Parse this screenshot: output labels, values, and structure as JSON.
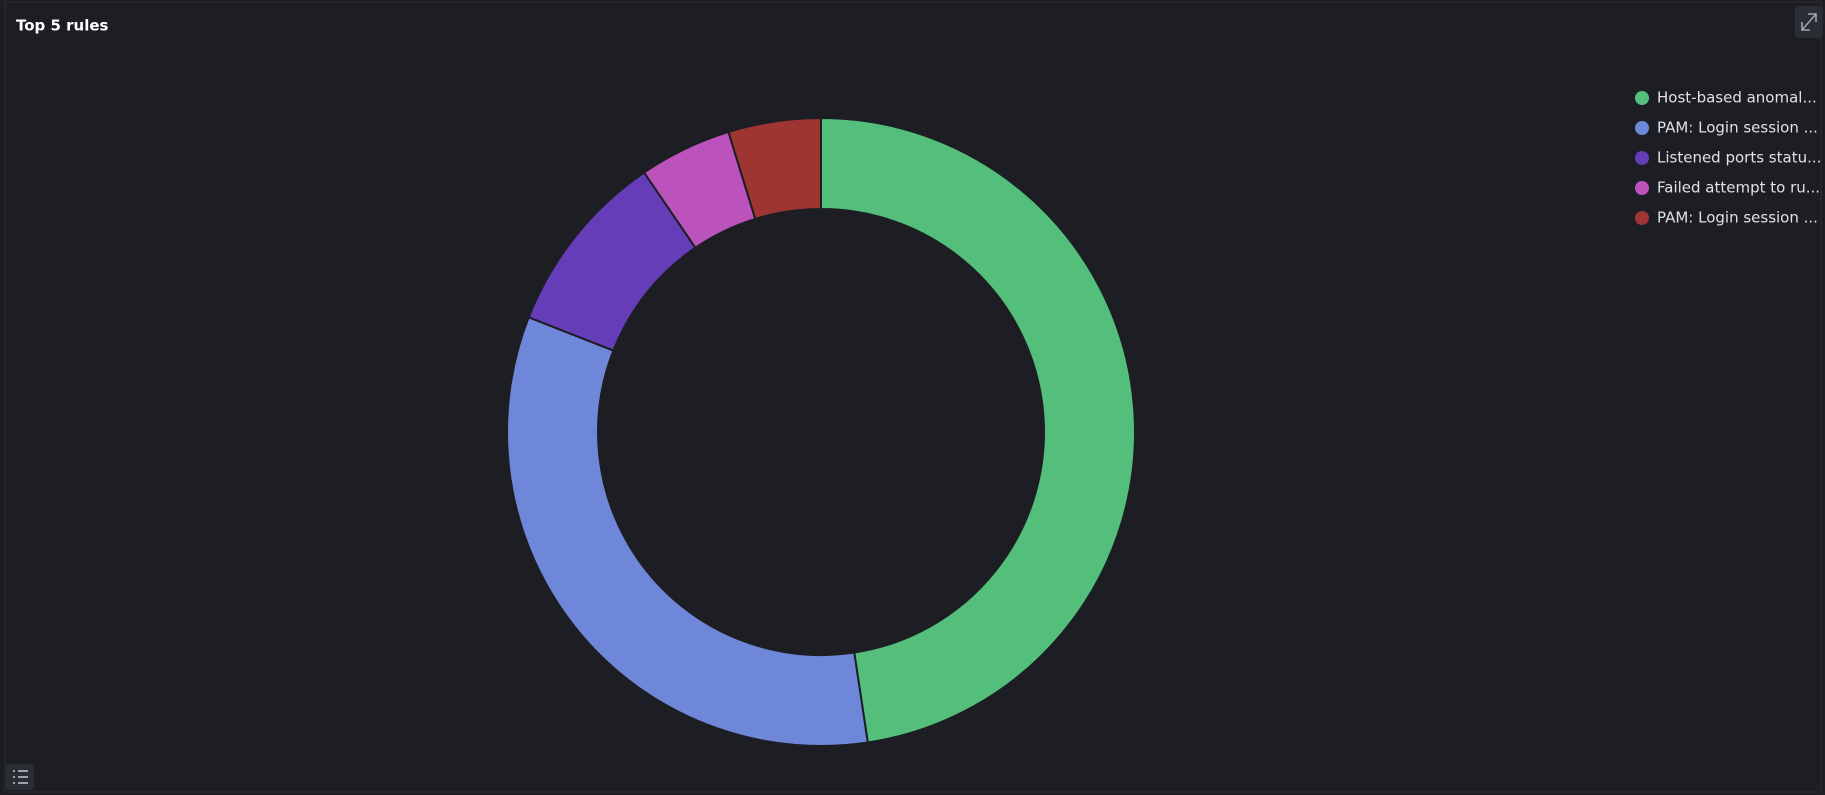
{
  "chart_data": {
    "type": "donut",
    "title": "Top 5 rules",
    "categories": [
      "Host-based anomal...",
      "PAM: Login session ...",
      "Listened ports statu...",
      "Failed attempt to ru...",
      "PAM: Login session ..."
    ],
    "values": [
      10,
      7,
      2,
      1,
      1
    ],
    "colors": [
      "#54bf7b",
      "#6f87d8",
      "#663db8",
      "#bc52bc",
      "#9e3533"
    ],
    "legend": "top-right"
  }
}
